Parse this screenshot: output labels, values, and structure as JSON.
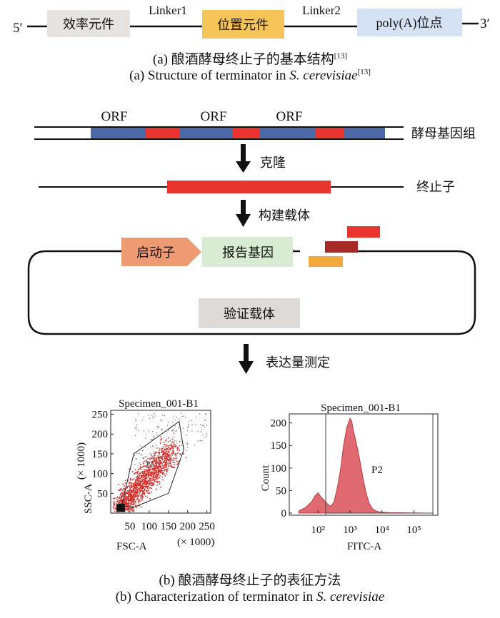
{
  "part_a": {
    "end_5": "5′",
    "end_3": "3′",
    "element1": "效率元件",
    "element2": "位置元件",
    "element3": "poly(A)位点",
    "linker1": "Linker1",
    "linker2": "Linker2",
    "caption_cn": "(a) 酿酒酵母终止子的基本结构",
    "caption_cn_ref": "[13]",
    "caption_en_prefix": "(a) Structure of terminator in ",
    "caption_en_species": "S. cerevisiae",
    "caption_en_ref": "[13]"
  },
  "part_b": {
    "orf_labels": [
      "ORF",
      "ORF",
      "ORF"
    ],
    "genome_label": "酵母基因组",
    "step1": "克隆",
    "terminator_label": "终止子",
    "step2": "构建载体",
    "promoter": "启动子",
    "reporter": "报告基因",
    "verify_vector": "验证载体",
    "step3": "表达量测定",
    "caption_cn": "(b) 酿酒酵母终止子的表征方法",
    "caption_en_prefix": "(b) Characterization of terminator in ",
    "caption_en_species": "S. cerevisiae"
  },
  "colors": {
    "orf_blue": "#4a69a6",
    "terminator_red": "#e8352f",
    "dark_red": "#a82a26",
    "orange": "#f2a93b",
    "element_grey": "#e6e3e0",
    "element_yellow": "#f5c55a",
    "element_blue": "#d4e2f3",
    "promoter": "#ee9a72",
    "reporter": "#d7ecd2",
    "verify": "#dedad8"
  },
  "chart_data": [
    {
      "type": "scatter",
      "title": "Specimen_001-B1",
      "xlabel": "FSC-A",
      "x_unit": "(× 1000)",
      "ylabel": "SSC-A",
      "y_unit": "(× 1000)",
      "x_ticks": [
        "50",
        "100",
        "150",
        "200",
        "250"
      ],
      "y_ticks": [
        "50",
        "100",
        "150",
        "200",
        "250"
      ],
      "xlim": [
        0,
        260
      ],
      "ylim": [
        0,
        260
      ],
      "gate_label": "P1",
      "gate_polygon": [
        [
          28,
          18
        ],
        [
          60,
          150
        ],
        [
          125,
          195
        ],
        [
          178,
          232
        ],
        [
          190,
          160
        ],
        [
          150,
          50
        ],
        [
          60,
          15
        ]
      ]
    },
    {
      "type": "area",
      "title": "Specimen_001-B1",
      "xlabel": "FITC-A",
      "ylabel": "Count",
      "x_scale": "log",
      "x_ticks": [
        "10²",
        "10³",
        "10⁴",
        "10⁵"
      ],
      "y_ticks": [
        "0",
        "50",
        "100",
        "150",
        "200"
      ],
      "ylim": [
        0,
        220
      ],
      "gate_label": "P2",
      "histogram": {
        "log10_x": [
          1.4,
          1.6,
          1.8,
          1.9,
          2.0,
          2.1,
          2.2,
          2.3,
          2.4,
          2.5,
          2.6,
          2.7,
          2.8,
          2.9,
          3.0,
          3.05,
          3.1,
          3.2,
          3.3,
          3.4,
          3.5,
          3.6,
          3.7,
          3.8,
          3.9,
          4.0,
          4.2,
          5.4
        ],
        "count": [
          5,
          12,
          25,
          38,
          45,
          35,
          28,
          20,
          15,
          25,
          55,
          95,
          150,
          190,
          210,
          205,
          185,
          155,
          120,
          80,
          45,
          22,
          10,
          5,
          3,
          2,
          1,
          0
        ]
      }
    }
  ]
}
